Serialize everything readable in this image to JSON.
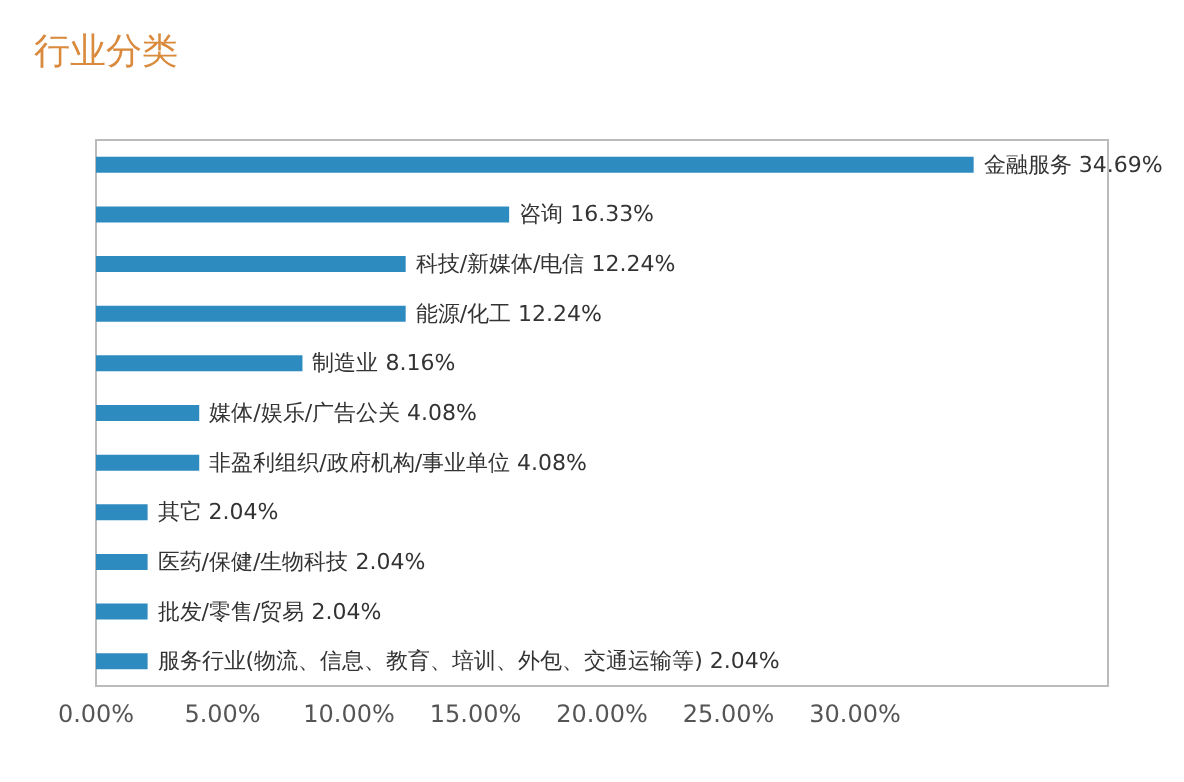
{
  "chart_data": {
    "type": "bar",
    "orientation": "horizontal",
    "title": "行业分类",
    "categories": [
      "金融服务",
      "咨询",
      "科技/新媒体/电信",
      "能源/化工",
      "制造业",
      "媒体/娱乐/广告公关",
      "非盈利组织/政府机构/事业单位",
      "其它",
      "医药/保健/生物科技",
      "批发/零售/贸易",
      "服务行业(物流、信息、教育、培训、外包、交通运输等)"
    ],
    "values": [
      34.69,
      16.33,
      12.24,
      12.24,
      8.16,
      4.08,
      4.08,
      2.04,
      2.04,
      2.04,
      2.04
    ],
    "value_labels": [
      "34.69%",
      "16.33%",
      "12.24%",
      "12.24%",
      "8.16%",
      "4.08%",
      "4.08%",
      "2.04%",
      "2.04%",
      "2.04%",
      "2.04%"
    ],
    "color": "#2e8bc0",
    "xlim": [
      0,
      40
    ],
    "xticks": [
      {
        "value": 0,
        "label": "0.00%"
      },
      {
        "value": 5,
        "label": "5.00%"
      },
      {
        "value": 10,
        "label": "10.00%"
      },
      {
        "value": 15,
        "label": "15.00%"
      },
      {
        "value": 20,
        "label": "20.00%"
      },
      {
        "value": 25,
        "label": "25.00%"
      },
      {
        "value": 30,
        "label": "30.00%"
      }
    ],
    "tick_labels": "x",
    "grid": false
  }
}
